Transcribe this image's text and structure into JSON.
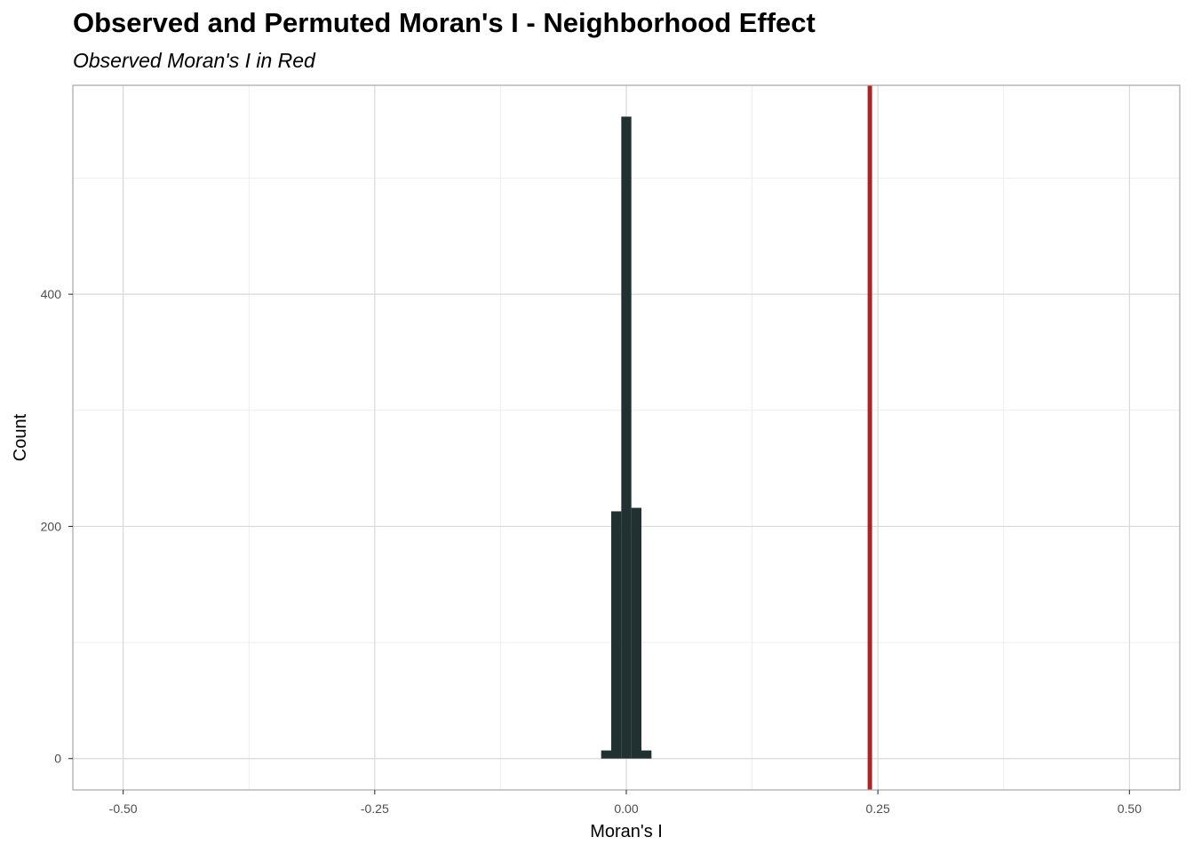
{
  "chart_data": {
    "type": "bar",
    "title": "Observed and Permuted Moran's I - Neighborhood Effect",
    "subtitle": "Observed Moran's I in Red",
    "xlabel": "Moran's I",
    "ylabel": "Count",
    "xlim": [
      -0.55,
      0.55
    ],
    "ylim": [
      -27,
      580
    ],
    "x_ticks": [
      -0.5,
      -0.25,
      0,
      0.25,
      0.5
    ],
    "x_tick_labels": [
      "-0.50",
      "-0.25",
      "0.00",
      "0.25",
      "0.50"
    ],
    "y_ticks": [
      0,
      200,
      400
    ],
    "y_tick_labels": [
      "0",
      "200",
      "400"
    ],
    "bins": [
      {
        "x0": -0.025,
        "x1": -0.015,
        "count": 7
      },
      {
        "x0": -0.015,
        "x1": -0.005,
        "count": 213
      },
      {
        "x0": -0.005,
        "x1": 0.005,
        "count": 553
      },
      {
        "x0": 0.005,
        "x1": 0.015,
        "count": 216
      },
      {
        "x0": 0.015,
        "x1": 0.025,
        "count": 7
      }
    ],
    "bar_color": "#213030",
    "observed_value": 0.242,
    "observed_color": "#B22222",
    "grid": true
  }
}
